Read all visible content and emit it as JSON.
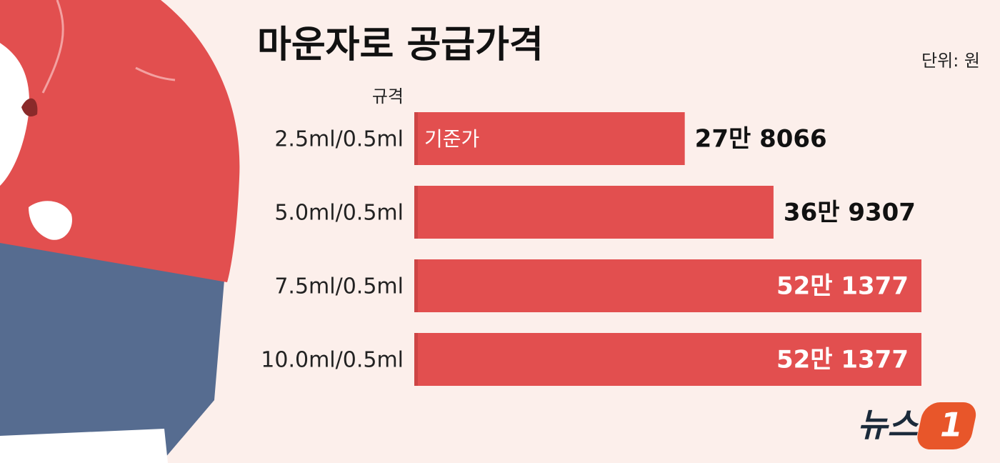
{
  "chart_data": {
    "type": "bar",
    "orientation": "horizontal",
    "title": "마운자로 공급가격",
    "unit_label": "단위: 원",
    "axis_label": "규격",
    "annotation": "기준가",
    "source": {
      "text": "뉴스",
      "mark": "1"
    },
    "categories": [
      "2.5ml/0.5ml",
      "5.0ml/0.5ml",
      "7.5ml/0.5ml",
      "10.0ml/0.5ml"
    ],
    "values": [
      278066,
      369307,
      521377,
      521377
    ],
    "value_labels": [
      "27만 8066",
      "36만 9307",
      "52만 1377",
      "52만 1377"
    ],
    "color": "#e24f4f"
  }
}
